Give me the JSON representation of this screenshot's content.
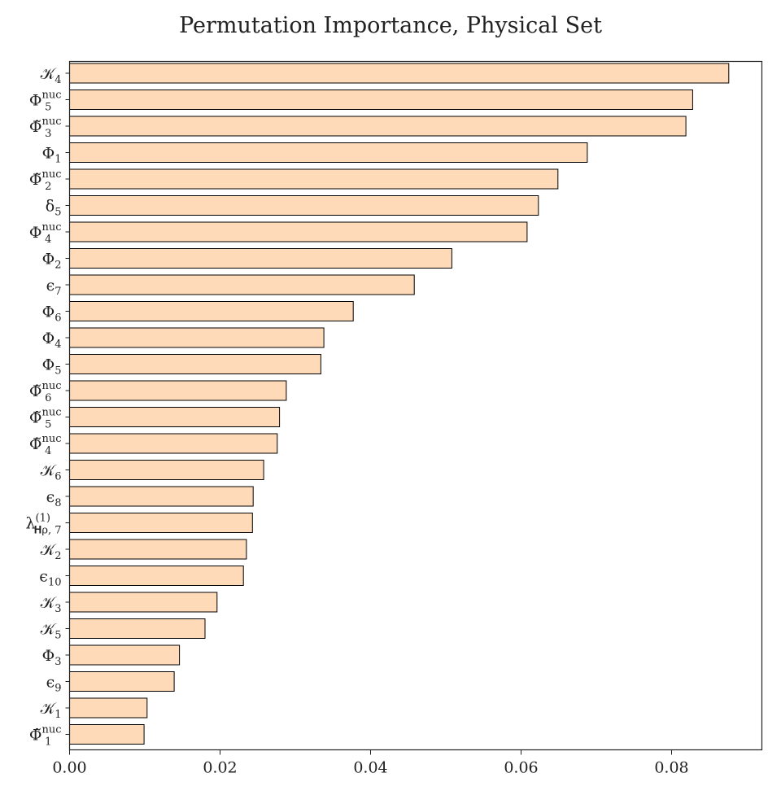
{
  "chart_data": {
    "type": "bar",
    "orientation": "horizontal",
    "title": "Permutation Importance, Physical Set",
    "xlabel": "",
    "ylabel": "",
    "xlim": [
      0,
      0.092
    ],
    "xticks": [
      "0.00",
      "0.02",
      "0.04",
      "0.06",
      "0.08"
    ],
    "grid": false,
    "bar_color": "#ffdab9",
    "edge_color": "#000000",
    "categories": [
      {
        "main": "𝒦",
        "sub": "4",
        "sup": ""
      },
      {
        "main": "Φ",
        "sub": "5",
        "sup": "nuc"
      },
      {
        "main": "Φ̃",
        "sub": "3",
        "sup": "nuc"
      },
      {
        "main": "Φ",
        "sub": "1",
        "sup": ""
      },
      {
        "main": "Φ̃",
        "sub": "2",
        "sup": "nuc"
      },
      {
        "main": "δ",
        "sub": "5",
        "sup": ""
      },
      {
        "main": "Φ",
        "sub": "4",
        "sup": "nuc"
      },
      {
        "main": "Φ",
        "sub": "2",
        "sup": ""
      },
      {
        "main": "ϵ",
        "sub": "7",
        "sup": ""
      },
      {
        "main": "Φ",
        "sub": "6",
        "sup": ""
      },
      {
        "main": "Φ",
        "sub": "4",
        "sup": ""
      },
      {
        "main": "Φ",
        "sub": "5",
        "sup": ""
      },
      {
        "main": "Φ̃",
        "sub": "6",
        "sup": "nuc"
      },
      {
        "main": "Φ̃",
        "sub": "5",
        "sup": "nuc"
      },
      {
        "main": "Φ̃",
        "sub": "4",
        "sup": "nuc"
      },
      {
        "main": "𝒦",
        "sub": "6",
        "sup": ""
      },
      {
        "main": "ϵ",
        "sub": "8",
        "sup": ""
      },
      {
        "main": "λ",
        "sub": "𝐇ρ, 7",
        "sup": "(1)"
      },
      {
        "main": "𝒦",
        "sub": "2",
        "sup": ""
      },
      {
        "main": "ϵ",
        "sub": "10",
        "sup": ""
      },
      {
        "main": "𝒦",
        "sub": "3",
        "sup": ""
      },
      {
        "main": "𝒦",
        "sub": "5",
        "sup": ""
      },
      {
        "main": "Φ",
        "sub": "3",
        "sup": ""
      },
      {
        "main": "ϵ",
        "sub": "9",
        "sup": ""
      },
      {
        "main": "𝒦",
        "sub": "1",
        "sup": ""
      },
      {
        "main": "Φ̃",
        "sub": "1",
        "sup": "nuc"
      }
    ],
    "values": [
      0.0876,
      0.0828,
      0.0819,
      0.0688,
      0.0649,
      0.0623,
      0.0608,
      0.0508,
      0.0458,
      0.0377,
      0.0338,
      0.0334,
      0.0288,
      0.0279,
      0.0276,
      0.0258,
      0.0244,
      0.0243,
      0.0235,
      0.0231,
      0.0196,
      0.018,
      0.0146,
      0.0139,
      0.0103,
      0.0099
    ]
  }
}
